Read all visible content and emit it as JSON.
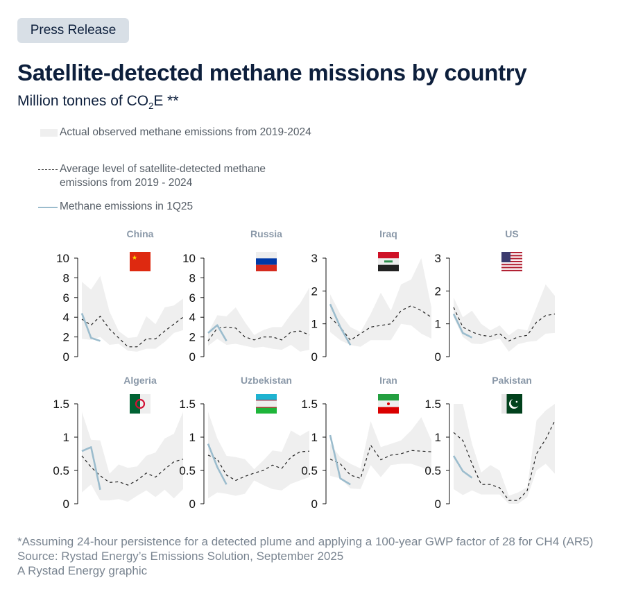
{
  "badge": "Press Release",
  "title": "Satellite-detected methane missions by country",
  "subtitle": {
    "prefix": "Million tonnes of CO",
    "sub": "2",
    "suffix": "E **"
  },
  "legend": {
    "band": "Actual observed methane emissions from 2019-2024",
    "average": "Average level of satellite-detected methane emissions from 2019 - 2024",
    "current": "Methane emissions in 1Q25"
  },
  "colors": {
    "band": "#efefef",
    "average": "#222222",
    "current": "#9bbccd",
    "title": "#0d1f3c",
    "panel_title": "#8a98a8"
  },
  "footnotes": [
    "*Assuming 24-hour persistence for a detected plume and applying a 100-year GWP factor of 28 for CH4 (AR5)",
    "Source: Rystad Energy’s Emissions Solution, September 2025",
    "A Rystad Energy graphic"
  ],
  "chart_data": [
    {
      "type": "line",
      "country": "China",
      "flag": "china-flag",
      "ylim": [
        0,
        10
      ],
      "yticks": [
        "0",
        "2",
        "4",
        "6",
        "8",
        "10"
      ],
      "average": [
        3.8,
        3.2,
        4.1,
        2.8,
        1.9,
        1.0,
        1.0,
        1.8,
        1.8,
        2.6,
        3.3,
        4.0
      ],
      "band_max": [
        7.6,
        6.8,
        8.2,
        4.6,
        2.6,
        1.9,
        2.0,
        4.1,
        3.3,
        5.0,
        5.2,
        5.9
      ],
      "band_min": [
        1.8,
        1.7,
        2.0,
        1.2,
        1.3,
        0.6,
        0.5,
        0.8,
        0.8,
        1.5,
        2.4,
        2.7
      ],
      "current": [
        4.4,
        1.9,
        1.6
      ]
    },
    {
      "type": "line",
      "country": "Russia",
      "flag": "russia-flag",
      "ylim": [
        0,
        10
      ],
      "yticks": [
        "0",
        "2",
        "4",
        "6",
        "8",
        "10"
      ],
      "average": [
        1.6,
        2.9,
        3.0,
        2.9,
        2.0,
        1.7,
        2.0,
        2.0,
        1.7,
        2.5,
        2.6,
        2.2
      ],
      "band_max": [
        2.4,
        4.2,
        4.1,
        5.0,
        3.5,
        2.2,
        2.7,
        3.0,
        3.0,
        4.3,
        5.4,
        7.0
      ],
      "band_min": [
        1.1,
        1.8,
        1.2,
        1.3,
        1.1,
        0.9,
        1.0,
        0.8,
        0.7,
        1.2,
        0.5,
        0.7
      ],
      "current": [
        2.4,
        3.2,
        1.6
      ]
    },
    {
      "type": "line",
      "country": "Iraq",
      "flag": "iraq-flag",
      "ylim": [
        0,
        3
      ],
      "yticks": [
        "0",
        "1",
        "2",
        "3"
      ],
      "average": [
        1.2,
        0.9,
        0.5,
        0.7,
        0.9,
        0.95,
        1.0,
        1.4,
        1.55,
        1.4,
        1.2
      ],
      "band_max": [
        1.9,
        1.3,
        0.9,
        0.75,
        1.3,
        1.95,
        1.4,
        2.2,
        2.35,
        3.0,
        1.5
      ],
      "band_min": [
        0.75,
        0.5,
        0.35,
        0.3,
        0.5,
        0.5,
        0.5,
        1.0,
        0.95,
        0.7,
        0.55
      ],
      "current": [
        1.6,
        0.9,
        0.35
      ]
    },
    {
      "type": "line",
      "country": "US",
      "flag": "us-flag",
      "ylim": [
        0,
        3
      ],
      "yticks": [
        "0",
        "1",
        "2",
        "3"
      ],
      "average": [
        1.5,
        0.9,
        0.75,
        0.65,
        0.62,
        0.7,
        0.48,
        0.6,
        0.65,
        1.05,
        1.25,
        1.3
      ],
      "band_max": [
        1.8,
        1.2,
        1.4,
        1.0,
        0.8,
        0.95,
        0.65,
        0.85,
        0.8,
        1.5,
        2.2,
        1.85
      ],
      "band_min": [
        1.2,
        0.6,
        0.4,
        0.38,
        0.48,
        0.55,
        0.15,
        0.38,
        0.45,
        0.48,
        0.7,
        0.72
      ],
      "current": [
        1.3,
        0.72,
        0.58
      ]
    },
    {
      "type": "line",
      "country": "Algeria",
      "flag": "algeria-flag",
      "ylim": [
        0,
        1.5
      ],
      "yticks": [
        "0",
        "0.5",
        "1",
        "1.5"
      ],
      "average": [
        0.72,
        0.55,
        0.42,
        0.32,
        0.33,
        0.28,
        0.35,
        0.46,
        0.4,
        0.52,
        0.63,
        0.67
      ],
      "band_max": [
        1.38,
        0.96,
        0.95,
        0.45,
        0.59,
        0.54,
        0.56,
        0.72,
        0.77,
        0.98,
        1.05,
        1.38
      ],
      "band_min": [
        0.17,
        0.29,
        0.05,
        0.05,
        0.07,
        0.03,
        0.12,
        0.2,
        0.1,
        0.21,
        0.08,
        0.22
      ],
      "current": [
        0.79,
        0.85,
        0.21
      ]
    },
    {
      "type": "line",
      "country": "Uzbekistan",
      "flag": "uzbekistan-flag",
      "ylim": [
        0,
        1.5
      ],
      "yticks": [
        "0",
        "0.5",
        "1",
        "1.5"
      ],
      "average": [
        0.73,
        0.67,
        0.43,
        0.35,
        0.41,
        0.46,
        0.5,
        0.58,
        0.53,
        0.7,
        0.78,
        0.79
      ],
      "band_max": [
        1.38,
        0.98,
        0.72,
        0.7,
        0.67,
        0.52,
        0.65,
        0.8,
        0.78,
        1.1,
        1.02,
        1.1
      ],
      "band_min": [
        0.08,
        0.17,
        0.15,
        0.12,
        0.15,
        0.35,
        0.28,
        0.22,
        0.2,
        0.3,
        0.35,
        0.4
      ],
      "current": [
        0.9,
        0.55,
        0.29
      ]
    },
    {
      "type": "line",
      "country": "Iran",
      "flag": "iran-flag",
      "ylim": [
        0,
        1.5
      ],
      "yticks": [
        "0",
        "0.5",
        "1",
        "1.5"
      ],
      "average": [
        0.67,
        0.6,
        0.43,
        0.38,
        0.88,
        0.66,
        0.73,
        0.75,
        0.8,
        0.79,
        0.78
      ],
      "band_max": [
        0.9,
        0.7,
        0.6,
        0.53,
        1.24,
        0.85,
        0.9,
        0.95,
        1.1,
        1.3,
        0.95
      ],
      "band_min": [
        0.42,
        0.38,
        0.23,
        0.22,
        0.58,
        0.4,
        0.58,
        0.6,
        0.6,
        0.55,
        0.47
      ],
      "current": [
        1.03,
        0.38,
        0.29
      ]
    },
    {
      "type": "line",
      "country": "Pakistan",
      "flag": "pakistan-flag",
      "ylim": [
        0,
        1.5
      ],
      "yticks": [
        "0",
        "0.5",
        "1",
        "1.5"
      ],
      "average": [
        1.07,
        0.95,
        0.6,
        0.29,
        0.29,
        0.24,
        0.05,
        0.05,
        0.2,
        0.75,
        0.97,
        1.25
      ],
      "band_max": [
        1.5,
        1.5,
        0.9,
        0.47,
        0.58,
        0.5,
        0.12,
        0.17,
        0.25,
        1.25,
        1.4,
        1.5
      ],
      "band_min": [
        0.22,
        0.13,
        0.2,
        0.14,
        0.14,
        0.14,
        0.0,
        0.0,
        0.1,
        0.5,
        0.6,
        0.45
      ],
      "current": [
        0.72,
        0.49,
        0.39
      ]
    }
  ]
}
